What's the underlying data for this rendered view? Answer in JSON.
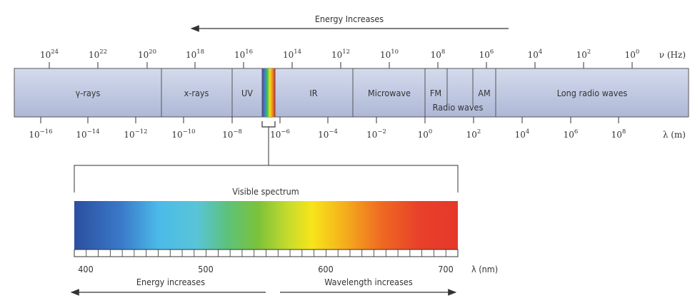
{
  "top_arrow_label": "Energy Increases",
  "freq_unit": "ν (Hz)",
  "wavelength_unit_m": "λ (m)",
  "freq_ticks": [
    {
      "base": "10",
      "exp": "24"
    },
    {
      "base": "10",
      "exp": "22"
    },
    {
      "base": "10",
      "exp": "20"
    },
    {
      "base": "10",
      "exp": "18"
    },
    {
      "base": "10",
      "exp": "16"
    },
    {
      "base": "10",
      "exp": "14"
    },
    {
      "base": "10",
      "exp": "12"
    },
    {
      "base": "10",
      "exp": "10"
    },
    {
      "base": "10",
      "exp": "8"
    },
    {
      "base": "10",
      "exp": "6"
    },
    {
      "base": "10",
      "exp": "4"
    },
    {
      "base": "10",
      "exp": "2"
    },
    {
      "base": "10",
      "exp": "0"
    }
  ],
  "wl_ticks": [
    {
      "base": "10",
      "exp": "−16"
    },
    {
      "base": "10",
      "exp": "−14"
    },
    {
      "base": "10",
      "exp": "−12"
    },
    {
      "base": "10",
      "exp": "−10"
    },
    {
      "base": "10",
      "exp": "−8"
    },
    {
      "base": "10",
      "exp": "−6"
    },
    {
      "base": "10",
      "exp": "−4"
    },
    {
      "base": "10",
      "exp": "−2"
    },
    {
      "base": "10",
      "exp": "0"
    },
    {
      "base": "10",
      "exp": "2"
    },
    {
      "base": "10",
      "exp": "4"
    },
    {
      "base": "10",
      "exp": "6"
    },
    {
      "base": "10",
      "exp": "8"
    }
  ],
  "regions": {
    "gamma": "γ-rays",
    "xray": "x-rays",
    "uv": "UV",
    "ir": "IR",
    "microwave": "Microwave",
    "fm": "FM",
    "am": "AM",
    "radio": "Radio waves",
    "long_radio": "Long radio waves"
  },
  "visible_title": "Visible spectrum",
  "nm_ticks": [
    "400",
    "500",
    "600",
    "700"
  ],
  "nm_unit": "λ (nm)",
  "bottom_left_label": "Energy increases",
  "bottom_right_label": "Wavelength increases",
  "colors": {
    "band_fill": "#c5cde6",
    "band_stroke": "#555555",
    "line": "#333333"
  }
}
